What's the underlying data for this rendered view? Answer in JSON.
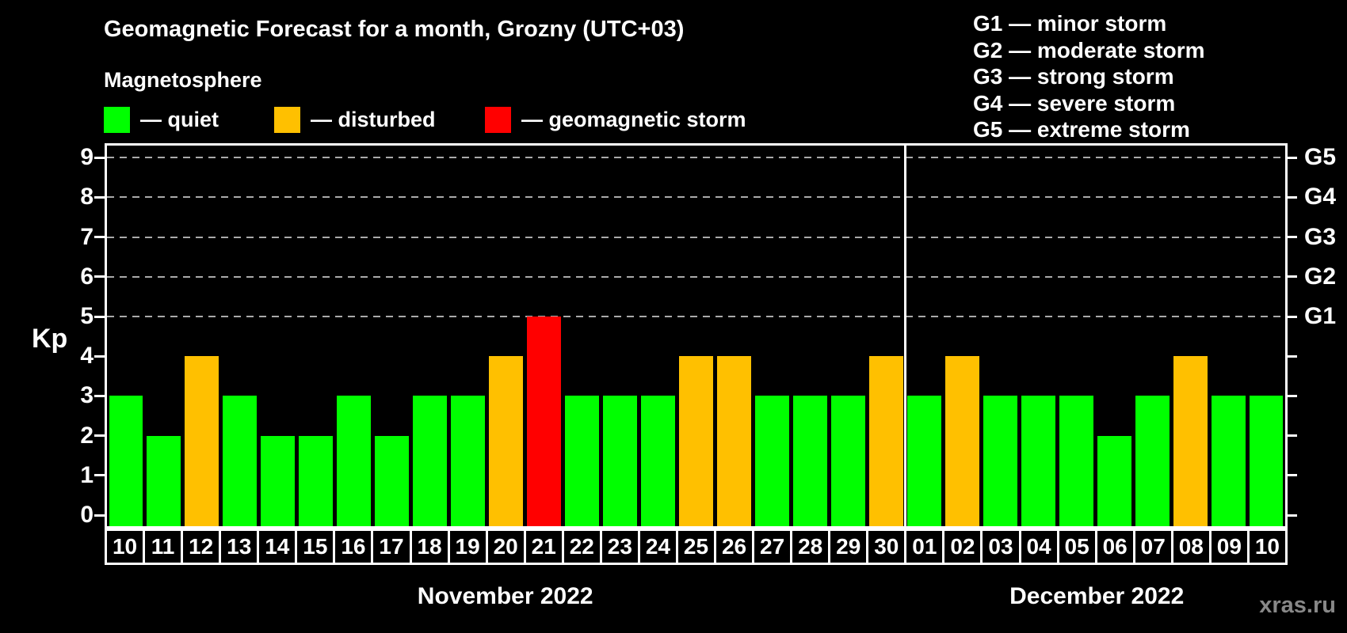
{
  "header": {
    "title": "Geomagnetic Forecast for a month, Grozny (UTC+03)",
    "subtitle": "Magnetosphere"
  },
  "legend": {
    "items": [
      {
        "name": "quiet",
        "label": "— quiet",
        "color": "#00ff00"
      },
      {
        "name": "disturbed",
        "label": "— disturbed",
        "color": "#ffc000"
      },
      {
        "name": "geomagnetic-storm",
        "label": "— geomagnetic storm",
        "color": "#ff0000"
      }
    ]
  },
  "storm_scale_legend": [
    "G1 — minor storm",
    "G2 — moderate storm",
    "G3 — strong storm",
    "G4 — severe storm",
    "G5 — extreme storm"
  ],
  "chart_data": {
    "type": "bar",
    "ylabel": "Kp",
    "ylim": [
      0,
      9
    ],
    "yticks": [
      0,
      1,
      2,
      3,
      4,
      5,
      6,
      7,
      8,
      9
    ],
    "gridlines_at": [
      5,
      6,
      7,
      8,
      9
    ],
    "grid_color": "#aaaaaa",
    "right_axis_labels": [
      {
        "label": "G1",
        "kp": 5
      },
      {
        "label": "G2",
        "kp": 6
      },
      {
        "label": "G3",
        "kp": 7
      },
      {
        "label": "G4",
        "kp": 8
      },
      {
        "label": "G5",
        "kp": 9
      }
    ],
    "series_colors": {
      "quiet": "#00ff00",
      "disturbed": "#ffc000",
      "storm": "#ff0000"
    },
    "months": [
      {
        "label": "November 2022",
        "bars": [
          {
            "day": "10",
            "kp": 3,
            "status": "quiet"
          },
          {
            "day": "11",
            "kp": 2,
            "status": "quiet"
          },
          {
            "day": "12",
            "kp": 4,
            "status": "disturbed"
          },
          {
            "day": "13",
            "kp": 3,
            "status": "quiet"
          },
          {
            "day": "14",
            "kp": 2,
            "status": "quiet"
          },
          {
            "day": "15",
            "kp": 2,
            "status": "quiet"
          },
          {
            "day": "16",
            "kp": 3,
            "status": "quiet"
          },
          {
            "day": "17",
            "kp": 2,
            "status": "quiet"
          },
          {
            "day": "18",
            "kp": 3,
            "status": "quiet"
          },
          {
            "day": "19",
            "kp": 3,
            "status": "quiet"
          },
          {
            "day": "20",
            "kp": 4,
            "status": "disturbed"
          },
          {
            "day": "21",
            "kp": 5,
            "status": "storm"
          },
          {
            "day": "22",
            "kp": 3,
            "status": "quiet"
          },
          {
            "day": "23",
            "kp": 3,
            "status": "quiet"
          },
          {
            "day": "24",
            "kp": 3,
            "status": "quiet"
          },
          {
            "day": "25",
            "kp": 4,
            "status": "disturbed"
          },
          {
            "day": "26",
            "kp": 4,
            "status": "disturbed"
          },
          {
            "day": "27",
            "kp": 3,
            "status": "quiet"
          },
          {
            "day": "28",
            "kp": 3,
            "status": "quiet"
          },
          {
            "day": "29",
            "kp": 3,
            "status": "quiet"
          },
          {
            "day": "30",
            "kp": 4,
            "status": "disturbed"
          }
        ]
      },
      {
        "label": "December 2022",
        "bars": [
          {
            "day": "01",
            "kp": 3,
            "status": "quiet"
          },
          {
            "day": "02",
            "kp": 4,
            "status": "disturbed"
          },
          {
            "day": "03",
            "kp": 3,
            "status": "quiet"
          },
          {
            "day": "04",
            "kp": 3,
            "status": "quiet"
          },
          {
            "day": "05",
            "kp": 3,
            "status": "quiet"
          },
          {
            "day": "06",
            "kp": 2,
            "status": "quiet"
          },
          {
            "day": "07",
            "kp": 3,
            "status": "quiet"
          },
          {
            "day": "08",
            "kp": 4,
            "status": "disturbed"
          },
          {
            "day": "09",
            "kp": 3,
            "status": "quiet"
          },
          {
            "day": "10",
            "kp": 3,
            "status": "quiet"
          }
        ]
      }
    ]
  },
  "watermark": "xras.ru"
}
